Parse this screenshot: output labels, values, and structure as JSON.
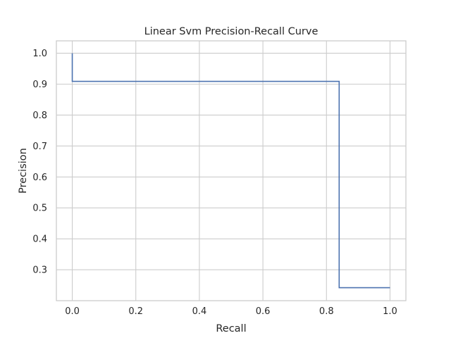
{
  "chart_data": {
    "type": "line",
    "title": "Linear Svm Precision-Recall Curve",
    "xlabel": "Recall",
    "ylabel": "Precision",
    "xlim": [
      -0.05,
      1.05
    ],
    "ylim": [
      0.2,
      1.04
    ],
    "xticks": [
      0.0,
      0.2,
      0.4,
      0.6,
      0.8,
      1.0
    ],
    "xtick_labels": [
      "0.0",
      "0.2",
      "0.4",
      "0.6",
      "0.8",
      "1.0"
    ],
    "yticks": [
      0.3,
      0.4,
      0.5,
      0.6,
      0.7,
      0.8,
      0.9,
      1.0
    ],
    "ytick_labels": [
      "0.3",
      "0.4",
      "0.5",
      "0.6",
      "0.7",
      "0.8",
      "0.9",
      "1.0"
    ],
    "grid": true,
    "step": "post",
    "series": [
      {
        "color": "#4c72b0",
        "x": [
          0.0,
          0.0,
          0.84,
          0.84,
          1.0
        ],
        "y": [
          1.0,
          0.909,
          0.909,
          0.242,
          0.242
        ]
      }
    ]
  }
}
